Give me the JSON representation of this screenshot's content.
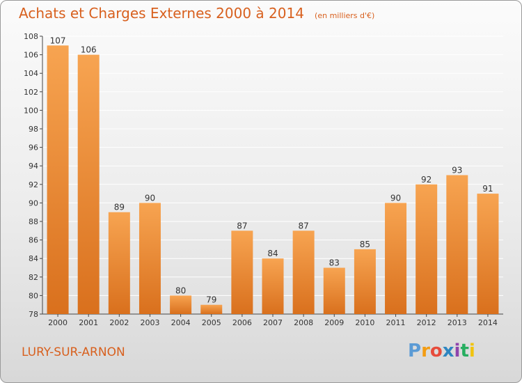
{
  "header": {
    "title": "Achats et Charges Externes 2000 à 2014",
    "unit": "(en milliers d'€)"
  },
  "footer": {
    "commune": "LURY-SUR-ARNON",
    "brand_letters": [
      "P",
      "r",
      "o",
      "x",
      "i",
      "t",
      "i"
    ],
    "brand_colors": [
      "#5b9bd5",
      "#f39c12",
      "#e74c3c",
      "#2e86c1",
      "#8e44ad",
      "#27ae60",
      "#f1c40f"
    ]
  },
  "colors": {
    "bar_light": "#f7a451",
    "bar_dark": "#d9701d",
    "title": "#d8601e",
    "grid": "#ffffff"
  },
  "chart_data": {
    "type": "bar",
    "title": "Achats et Charges Externes 2000 à 2014",
    "subtitle": "(en milliers d'€)",
    "xlabel": "",
    "ylabel": "",
    "categories": [
      "2000",
      "2001",
      "2002",
      "2003",
      "2004",
      "2005",
      "2006",
      "2007",
      "2008",
      "2009",
      "2010",
      "2011",
      "2012",
      "2013",
      "2014"
    ],
    "values": [
      107,
      106,
      89,
      90,
      80,
      79,
      87,
      84,
      87,
      83,
      85,
      90,
      92,
      93,
      91
    ],
    "ylim": [
      78,
      108
    ],
    "yticks": [
      78,
      80,
      82,
      84,
      86,
      88,
      90,
      92,
      94,
      96,
      98,
      100,
      102,
      104,
      106,
      108
    ],
    "grid": true,
    "legend": "none"
  }
}
